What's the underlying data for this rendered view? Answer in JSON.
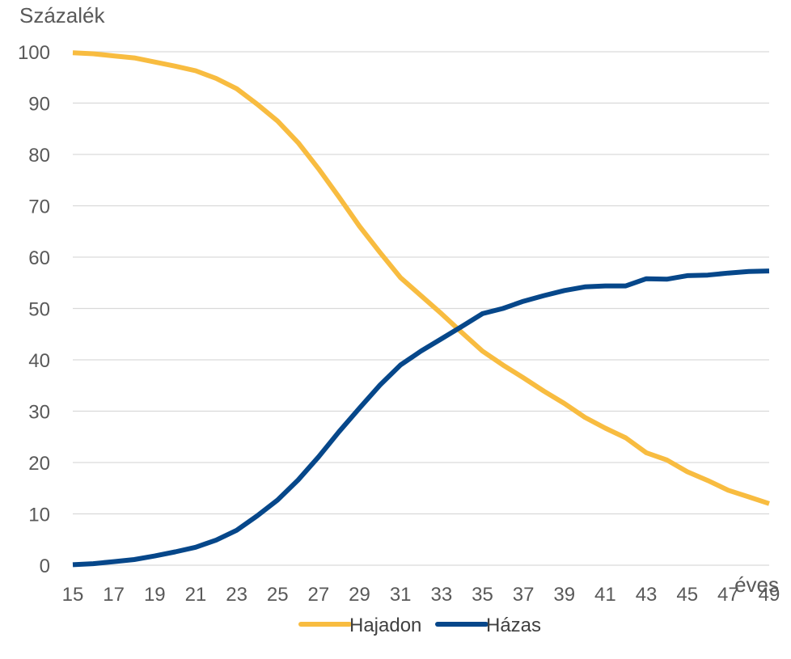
{
  "chart_data": {
    "type": "line",
    "ylabel": "Százalék",
    "xlabel": "éves",
    "ylim": [
      0,
      100
    ],
    "y_ticks": [
      0,
      10,
      20,
      30,
      40,
      50,
      60,
      70,
      80,
      90,
      100
    ],
    "x_tick_labels": [
      "15",
      "17",
      "19",
      "21",
      "23",
      "25",
      "27",
      "29",
      "31",
      "33",
      "35",
      "37",
      "39",
      "41",
      "43",
      "45",
      "47",
      "49"
    ],
    "x": [
      15,
      16,
      17,
      18,
      19,
      20,
      21,
      22,
      23,
      24,
      25,
      26,
      27,
      28,
      29,
      30,
      31,
      32,
      33,
      34,
      35,
      36,
      37,
      38,
      39,
      40,
      41,
      42,
      43,
      44,
      45,
      46,
      47,
      48,
      49
    ],
    "grid": true,
    "legend_position": "bottom",
    "series": [
      {
        "name": "Hajadon",
        "color": "#F8BC40",
        "values": [
          99.8,
          99.6,
          99.2,
          98.8,
          98,
          97.2,
          96.3,
          94.8,
          92.8,
          89.8,
          86.5,
          82.3,
          77.2,
          71.7,
          66,
          60.9,
          56,
          52.5,
          49,
          45.3,
          41.7,
          39,
          36.5,
          33.9,
          31.5,
          28.8,
          26.7,
          24.8,
          21.9,
          20.5,
          18.2,
          16.5,
          14.6,
          13.3,
          12
        ]
      },
      {
        "name": "Házas",
        "color": "#06478A",
        "values": [
          0.1,
          0.3,
          0.7,
          1.1,
          1.8,
          2.6,
          3.5,
          4.9,
          6.8,
          9.6,
          12.7,
          16.6,
          21.1,
          26,
          30.6,
          35.1,
          39,
          41.7,
          44.1,
          46.5,
          49,
          50,
          51.4,
          52.5,
          53.5,
          54.2,
          54.4,
          54.4,
          55.8,
          55.7,
          56.4,
          56.5,
          56.9,
          57.2,
          57.3
        ]
      }
    ]
  }
}
